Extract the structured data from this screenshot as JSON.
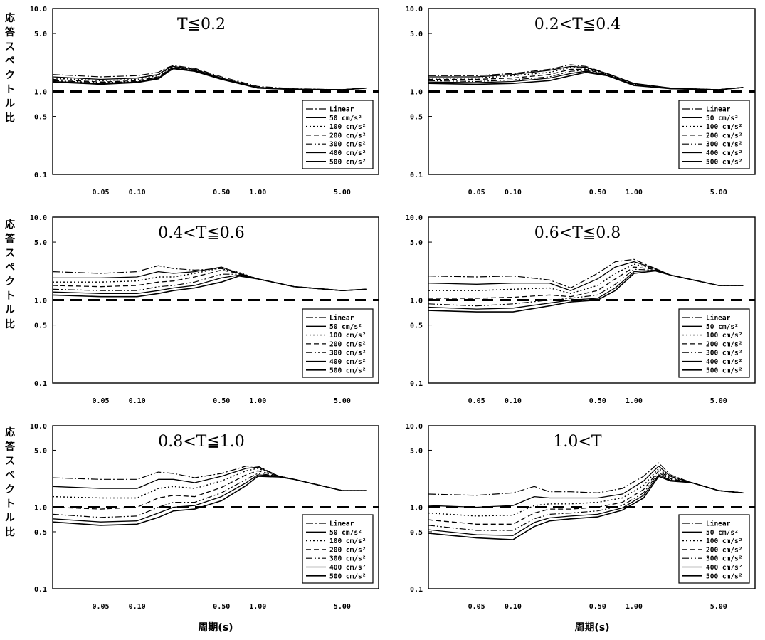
{
  "figure": {
    "y_label": "応答スペクトル比",
    "x_label": "周期(s)"
  },
  "chart_data": [
    {
      "type": "line",
      "title": "T≦0.2",
      "x_scale": "log",
      "y_scale": "log",
      "x_ticks": [
        "0.05",
        "0.10",
        "0.50",
        "1.00",
        "5.00"
      ],
      "y_ticks": [
        "10.0",
        "5.0",
        "1.0",
        "0.5",
        "0.1"
      ],
      "ylim": [
        0.1,
        10
      ],
      "xlim": [
        0.02,
        10
      ],
      "reference_line": 1.0,
      "legend": [
        "Linear",
        "50 cm/s²",
        "100 cm/s²",
        "200 cm/s²",
        "300 cm/s²",
        "400 cm/s²",
        "500 cm/s²"
      ],
      "x": [
        0.02,
        0.05,
        0.1,
        0.15,
        0.18,
        0.2,
        0.3,
        0.5,
        1.0,
        2.0,
        5.0,
        8.0
      ],
      "series": [
        {
          "name": "Linear",
          "values": [
            1.6,
            1.5,
            1.55,
            1.7,
            1.95,
            2.05,
            1.9,
            1.5,
            1.15,
            1.08,
            1.05,
            1.1
          ]
        },
        {
          "name": "50 cm/s²",
          "values": [
            1.5,
            1.4,
            1.45,
            1.6,
            1.9,
            2.0,
            1.85,
            1.45,
            1.12,
            1.07,
            1.05,
            1.1
          ]
        },
        {
          "name": "100 cm/s²",
          "values": [
            1.45,
            1.35,
            1.4,
            1.55,
            1.85,
            1.95,
            1.8,
            1.45,
            1.12,
            1.07,
            1.05,
            1.1
          ]
        },
        {
          "name": "200 cm/s²",
          "values": [
            1.4,
            1.3,
            1.35,
            1.5,
            1.8,
            1.95,
            1.8,
            1.45,
            1.12,
            1.07,
            1.05,
            1.1
          ]
        },
        {
          "name": "300 cm/s²",
          "values": [
            1.35,
            1.28,
            1.32,
            1.48,
            1.78,
            1.9,
            1.78,
            1.42,
            1.1,
            1.06,
            1.05,
            1.1
          ]
        },
        {
          "name": "400 cm/s²",
          "values": [
            1.32,
            1.25,
            1.3,
            1.45,
            1.75,
            1.9,
            1.78,
            1.42,
            1.1,
            1.06,
            1.05,
            1.1
          ]
        },
        {
          "name": "500 cm/s²",
          "values": [
            1.3,
            1.22,
            1.28,
            1.42,
            1.72,
            1.88,
            1.75,
            1.4,
            1.1,
            1.06,
            1.05,
            1.1
          ]
        }
      ]
    },
    {
      "type": "line",
      "title": "0.2<T≦0.4",
      "x_scale": "log",
      "y_scale": "log",
      "x_ticks": [
        "0.05",
        "0.10",
        "0.50",
        "1.00",
        "5.00"
      ],
      "y_ticks": [
        "10.0",
        "5.0",
        "1.0",
        "0.5",
        "0.1"
      ],
      "ylim": [
        0.1,
        10
      ],
      "xlim": [
        0.02,
        10
      ],
      "reference_line": 1.0,
      "legend": [
        "Linear",
        "50 cm/s²",
        "100 cm/s²",
        "200 cm/s²",
        "300 cm/s²",
        "400 cm/s²",
        "500 cm/s²"
      ],
      "x": [
        0.02,
        0.05,
        0.1,
        0.2,
        0.3,
        0.4,
        0.6,
        1.0,
        2.0,
        5.0,
        8.0
      ],
      "series": [
        {
          "name": "Linear",
          "values": [
            1.55,
            1.55,
            1.65,
            1.85,
            2.1,
            2.0,
            1.65,
            1.25,
            1.1,
            1.05,
            1.12
          ]
        },
        {
          "name": "50 cm/s²",
          "values": [
            1.5,
            1.5,
            1.6,
            1.8,
            2.0,
            1.95,
            1.65,
            1.25,
            1.1,
            1.05,
            1.12
          ]
        },
        {
          "name": "100 cm/s²",
          "values": [
            1.45,
            1.45,
            1.55,
            1.7,
            1.95,
            1.9,
            1.62,
            1.22,
            1.1,
            1.05,
            1.12
          ]
        },
        {
          "name": "200 cm/s²",
          "values": [
            1.4,
            1.4,
            1.45,
            1.6,
            1.85,
            1.85,
            1.6,
            1.22,
            1.08,
            1.05,
            1.12
          ]
        },
        {
          "name": "300 cm/s²",
          "values": [
            1.35,
            1.32,
            1.38,
            1.5,
            1.75,
            1.8,
            1.6,
            1.2,
            1.08,
            1.05,
            1.12
          ]
        },
        {
          "name": "400 cm/s²",
          "values": [
            1.3,
            1.28,
            1.32,
            1.45,
            1.65,
            1.75,
            1.58,
            1.2,
            1.08,
            1.05,
            1.12
          ]
        },
        {
          "name": "500 cm/s²",
          "values": [
            1.25,
            1.22,
            1.25,
            1.35,
            1.55,
            1.7,
            1.55,
            1.18,
            1.08,
            1.05,
            1.12
          ]
        }
      ]
    },
    {
      "type": "line",
      "title": "0.4<T≦0.6",
      "x_scale": "log",
      "y_scale": "log",
      "x_ticks": [
        "0.05",
        "0.10",
        "0.50",
        "1.00",
        "5.00"
      ],
      "y_ticks": [
        "10.0",
        "5.0",
        "1.0",
        "0.5",
        "0.1"
      ],
      "ylim": [
        0.1,
        10
      ],
      "xlim": [
        0.02,
        10
      ],
      "reference_line": 1.0,
      "legend": [
        "Linear",
        "50 cm/s²",
        "100 cm/s²",
        "200 cm/s²",
        "300 cm/s²",
        "400 cm/s²",
        "500 cm/s²"
      ],
      "x": [
        0.02,
        0.05,
        0.1,
        0.15,
        0.2,
        0.3,
        0.5,
        0.7,
        1.0,
        2.0,
        5.0,
        8.0
      ],
      "series": [
        {
          "name": "Linear",
          "values": [
            2.2,
            2.1,
            2.2,
            2.6,
            2.4,
            2.3,
            2.4,
            2.1,
            1.8,
            1.45,
            1.3,
            1.35
          ]
        },
        {
          "name": "50 cm/s²",
          "values": [
            1.85,
            1.85,
            1.9,
            2.2,
            2.1,
            2.2,
            2.5,
            2.1,
            1.8,
            1.45,
            1.3,
            1.35
          ]
        },
        {
          "name": "100 cm/s²",
          "values": [
            1.65,
            1.65,
            1.7,
            1.9,
            1.9,
            2.1,
            2.45,
            2.15,
            1.8,
            1.45,
            1.3,
            1.35
          ]
        },
        {
          "name": "200 cm/s²",
          "values": [
            1.5,
            1.45,
            1.5,
            1.65,
            1.7,
            1.9,
            2.3,
            2.1,
            1.8,
            1.45,
            1.3,
            1.35
          ]
        },
        {
          "name": "300 cm/s²",
          "values": [
            1.35,
            1.3,
            1.3,
            1.45,
            1.5,
            1.65,
            2.05,
            2.05,
            1.8,
            1.45,
            1.3,
            1.35
          ]
        },
        {
          "name": "400 cm/s²",
          "values": [
            1.25,
            1.2,
            1.2,
            1.3,
            1.4,
            1.5,
            1.85,
            2.0,
            1.8,
            1.45,
            1.3,
            1.35
          ]
        },
        {
          "name": "500 cm/s²",
          "values": [
            1.15,
            1.1,
            1.1,
            1.2,
            1.3,
            1.4,
            1.65,
            1.95,
            1.8,
            1.45,
            1.3,
            1.35
          ]
        }
      ]
    },
    {
      "type": "line",
      "title": "0.6<T≦0.8",
      "x_scale": "log",
      "y_scale": "log",
      "x_ticks": [
        "0.05",
        "0.10",
        "0.50",
        "1.00",
        "5.00"
      ],
      "y_ticks": [
        "10.0",
        "5.0",
        "1.0",
        "0.5",
        "0.1"
      ],
      "ylim": [
        0.1,
        10
      ],
      "xlim": [
        0.02,
        10
      ],
      "reference_line": 1.0,
      "legend": [
        "Linear",
        "50 cm/s²",
        "100 cm/s²",
        "200 cm/s²",
        "300 cm/s²",
        "400 cm/s²",
        "500 cm/s²"
      ],
      "x": [
        0.02,
        0.05,
        0.1,
        0.2,
        0.3,
        0.5,
        0.7,
        1.0,
        1.5,
        2.0,
        5.0,
        8.0
      ],
      "series": [
        {
          "name": "Linear",
          "values": [
            1.95,
            1.9,
            1.95,
            1.75,
            1.4,
            2.1,
            2.9,
            3.1,
            2.4,
            2.0,
            1.5,
            1.5
          ]
        },
        {
          "name": "50 cm/s²",
          "values": [
            1.6,
            1.55,
            1.6,
            1.6,
            1.3,
            1.8,
            2.5,
            2.9,
            2.4,
            2.0,
            1.5,
            1.5
          ]
        },
        {
          "name": "100 cm/s²",
          "values": [
            1.3,
            1.3,
            1.35,
            1.4,
            1.2,
            1.5,
            2.1,
            2.7,
            2.4,
            2.0,
            1.5,
            1.5
          ]
        },
        {
          "name": "200 cm/s²",
          "values": [
            1.05,
            1.05,
            1.08,
            1.15,
            1.1,
            1.3,
            1.8,
            2.5,
            2.35,
            2.0,
            1.5,
            1.5
          ]
        },
        {
          "name": "300 cm/s²",
          "values": [
            0.9,
            0.85,
            0.9,
            1.0,
            1.05,
            1.15,
            1.55,
            2.35,
            2.3,
            2.0,
            1.5,
            1.5
          ]
        },
        {
          "name": "400 cm/s²",
          "values": [
            0.82,
            0.78,
            0.8,
            0.92,
            1.0,
            1.05,
            1.4,
            2.2,
            2.3,
            2.0,
            1.5,
            1.5
          ]
        },
        {
          "name": "500 cm/s²",
          "values": [
            0.75,
            0.72,
            0.72,
            0.85,
            0.95,
            1.0,
            1.3,
            2.1,
            2.25,
            2.0,
            1.5,
            1.5
          ]
        }
      ]
    },
    {
      "type": "line",
      "title": "0.8<T≦1.0",
      "x_scale": "log",
      "y_scale": "log",
      "x_ticks": [
        "0.05",
        "0.10",
        "0.50",
        "1.00",
        "5.00"
      ],
      "y_ticks": [
        "10.0",
        "5.0",
        "1.0",
        "0.5",
        "0.1"
      ],
      "ylim": [
        0.1,
        10
      ],
      "xlim": [
        0.02,
        10
      ],
      "reference_line": 1.0,
      "legend": [
        "Linear",
        "50 cm/s²",
        "100 cm/s²",
        "200 cm/s²",
        "300 cm/s²",
        "400 cm/s²",
        "500 cm/s²"
      ],
      "x": [
        0.02,
        0.05,
        0.1,
        0.15,
        0.2,
        0.3,
        0.5,
        0.8,
        1.0,
        1.5,
        2.0,
        5.0,
        8.0
      ],
      "series": [
        {
          "name": "Linear",
          "values": [
            2.3,
            2.2,
            2.2,
            2.7,
            2.6,
            2.3,
            2.6,
            3.2,
            3.2,
            2.4,
            2.2,
            1.6,
            1.6
          ]
        },
        {
          "name": "50 cm/s²",
          "values": [
            1.8,
            1.7,
            1.7,
            2.2,
            2.2,
            2.0,
            2.4,
            3.0,
            3.1,
            2.4,
            2.2,
            1.6,
            1.6
          ]
        },
        {
          "name": "100 cm/s²",
          "values": [
            1.35,
            1.3,
            1.3,
            1.7,
            1.8,
            1.7,
            2.1,
            2.8,
            3.0,
            2.4,
            2.2,
            1.6,
            1.6
          ]
        },
        {
          "name": "200 cm/s²",
          "values": [
            1.0,
            0.95,
            1.0,
            1.3,
            1.4,
            1.35,
            1.75,
            2.5,
            2.8,
            2.4,
            2.2,
            1.6,
            1.6
          ]
        },
        {
          "name": "300 cm/s²",
          "values": [
            0.82,
            0.75,
            0.78,
            1.0,
            1.15,
            1.15,
            1.5,
            2.2,
            2.6,
            2.4,
            2.2,
            1.6,
            1.6
          ]
        },
        {
          "name": "400 cm/s²",
          "values": [
            0.72,
            0.66,
            0.68,
            0.85,
            1.0,
            1.05,
            1.35,
            2.0,
            2.5,
            2.4,
            2.2,
            1.6,
            1.6
          ]
        },
        {
          "name": "500 cm/s²",
          "values": [
            0.66,
            0.6,
            0.62,
            0.75,
            0.9,
            0.95,
            1.2,
            1.85,
            2.4,
            2.35,
            2.2,
            1.6,
            1.6
          ]
        }
      ]
    },
    {
      "type": "line",
      "title": "1.0<T",
      "x_scale": "log",
      "y_scale": "log",
      "x_ticks": [
        "0.05",
        "0.10",
        "0.50",
        "1.00",
        "5.00"
      ],
      "y_ticks": [
        "10.0",
        "5.0",
        "1.0",
        "0.5",
        "0.1"
      ],
      "ylim": [
        0.1,
        10
      ],
      "xlim": [
        0.02,
        10
      ],
      "reference_line": 1.0,
      "legend": [
        "Linear",
        "50 cm/s²",
        "100 cm/s²",
        "200 cm/s²",
        "300 cm/s²",
        "400 cm/s²",
        "500 cm/s²"
      ],
      "x": [
        0.02,
        0.05,
        0.1,
        0.15,
        0.2,
        0.3,
        0.5,
        0.8,
        1.2,
        1.6,
        2.0,
        3.0,
        5.0,
        8.0
      ],
      "series": [
        {
          "name": "Linear",
          "values": [
            1.45,
            1.4,
            1.5,
            1.8,
            1.55,
            1.55,
            1.5,
            1.7,
            2.4,
            3.5,
            2.5,
            2.0,
            1.6,
            1.5
          ]
        },
        {
          "name": "50 cm/s²",
          "values": [
            1.05,
            1.0,
            1.05,
            1.35,
            1.3,
            1.3,
            1.3,
            1.45,
            2.1,
            3.2,
            2.4,
            2.0,
            1.6,
            1.5
          ]
        },
        {
          "name": "100 cm/s²",
          "values": [
            0.85,
            0.78,
            0.8,
            1.05,
            1.1,
            1.1,
            1.15,
            1.3,
            1.85,
            3.0,
            2.3,
            2.0,
            1.6,
            1.5
          ]
        },
        {
          "name": "200 cm/s²",
          "values": [
            0.7,
            0.62,
            0.62,
            0.85,
            0.95,
            0.95,
            1.0,
            1.15,
            1.65,
            2.8,
            2.25,
            2.0,
            1.6,
            1.5
          ]
        },
        {
          "name": "300 cm/s²",
          "values": [
            0.6,
            0.52,
            0.52,
            0.72,
            0.82,
            0.85,
            0.9,
            1.05,
            1.5,
            2.65,
            2.2,
            2.0,
            1.6,
            1.5
          ]
        },
        {
          "name": "400 cm/s²",
          "values": [
            0.53,
            0.46,
            0.45,
            0.65,
            0.74,
            0.78,
            0.82,
            0.98,
            1.4,
            2.5,
            2.15,
            2.0,
            1.6,
            1.5
          ]
        },
        {
          "name": "500 cm/s²",
          "values": [
            0.48,
            0.42,
            0.4,
            0.58,
            0.68,
            0.72,
            0.76,
            0.92,
            1.3,
            2.4,
            2.1,
            2.0,
            1.6,
            1.5
          ]
        }
      ]
    }
  ]
}
